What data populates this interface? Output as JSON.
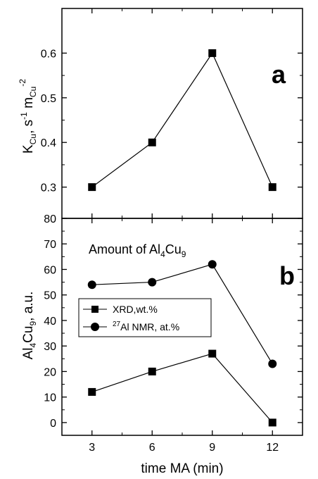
{
  "chart_data": [
    {
      "type": "line",
      "panel_label": "a",
      "x": [
        3,
        6,
        9,
        12
      ],
      "series": [
        {
          "marker": "square",
          "values": [
            0.3,
            0.4,
            0.6,
            0.3
          ]
        }
      ],
      "ylabel": {
        "base": "K",
        "sub1": "Cu",
        "mid": ", s",
        "sup1": "-1",
        "mid2": " m",
        "sub2": "Cu",
        "sup2": "-2"
      },
      "yticks": [
        "0.3",
        "0.4",
        "0.5",
        "0.6"
      ],
      "ylim": [
        0.23,
        0.7
      ],
      "xlim": [
        1.5,
        13.5
      ],
      "grid": false
    },
    {
      "type": "line",
      "panel_label": "b",
      "annotation": {
        "text": "Amount of Al",
        "sub": "4",
        "text2": "Cu",
        "sub2": "9"
      },
      "x": [
        3,
        6,
        9,
        12
      ],
      "series": [
        {
          "name": "XRD,wt.%",
          "marker": "square",
          "values": [
            12,
            20,
            27,
            0
          ]
        },
        {
          "name_sup": "27",
          "name": "Al NMR, at.%",
          "marker": "circle",
          "values": [
            54,
            55,
            62,
            23
          ]
        }
      ],
      "ylabel": {
        "base": "Al",
        "sub1": "4",
        "mid": "Cu",
        "sub2": "9",
        "tail": ", a.u."
      },
      "yticks": [
        "0",
        "10",
        "20",
        "30",
        "40",
        "50",
        "60",
        "70",
        "80"
      ],
      "ylim": [
        -5,
        80
      ],
      "xticks": [
        "3",
        "6",
        "9",
        "12"
      ],
      "xlim": [
        1.5,
        13.5
      ],
      "xlabel": "time MA (min)",
      "legend": "center-left",
      "grid": false
    }
  ],
  "colors": {
    "ink": "#000000",
    "background": "#ffffff"
  }
}
